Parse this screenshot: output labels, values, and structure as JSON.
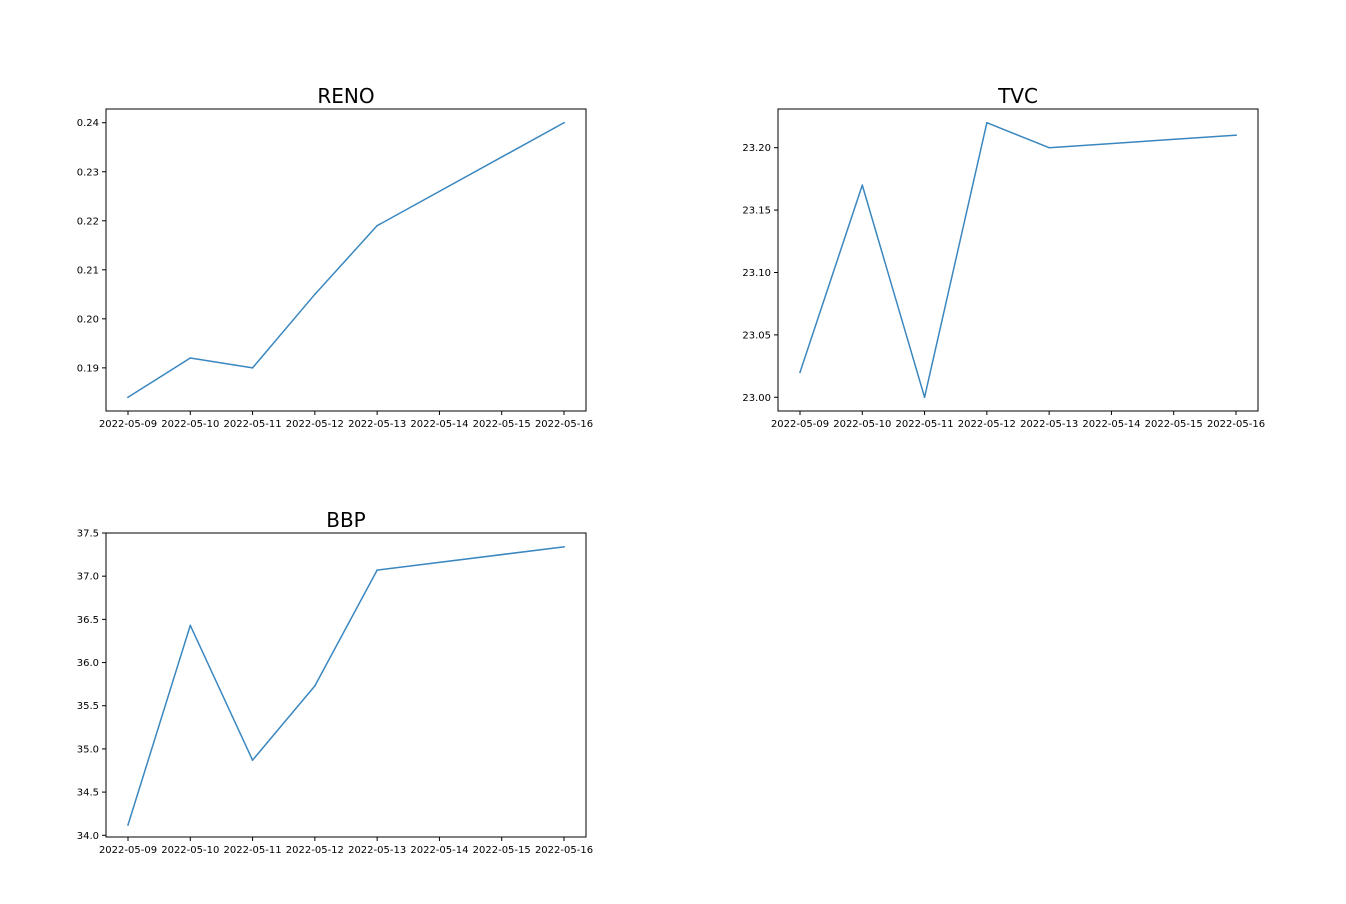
{
  "chart_data": [
    {
      "type": "line",
      "title": "RENO",
      "xlabel": "",
      "ylabel": "",
      "x_ticks": [
        "2022-05-09",
        "2022-05-10",
        "2022-05-11",
        "2022-05-12",
        "2022-05-13",
        "2022-05-14",
        "2022-05-15",
        "2022-05-16"
      ],
      "x": [
        "2022-05-09",
        "2022-05-10",
        "2022-05-11",
        "2022-05-12",
        "2022-05-13",
        "2022-05-16"
      ],
      "y": [
        0.184,
        0.192,
        0.19,
        0.205,
        0.219,
        0.24
      ],
      "y_ticks": [
        "0.19",
        "0.20",
        "0.21",
        "0.22",
        "0.23",
        "0.24"
      ],
      "ylim": [
        0.1812,
        0.2428
      ],
      "grid": false,
      "line_color": "#3a87c0"
    },
    {
      "type": "line",
      "title": "TVC",
      "xlabel": "",
      "ylabel": "",
      "x_ticks": [
        "2022-05-09",
        "2022-05-10",
        "2022-05-11",
        "2022-05-12",
        "2022-05-13",
        "2022-05-14",
        "2022-05-15",
        "2022-05-16"
      ],
      "x": [
        "2022-05-09",
        "2022-05-10",
        "2022-05-11",
        "2022-05-12",
        "2022-05-13",
        "2022-05-16"
      ],
      "y": [
        23.02,
        23.17,
        23.0,
        23.22,
        23.2,
        23.21
      ],
      "y_ticks": [
        "23.00",
        "23.05",
        "23.10",
        "23.15",
        "23.20"
      ],
      "ylim": [
        22.989,
        23.231
      ],
      "grid": false,
      "line_color": "#3a87c0"
    },
    {
      "type": "line",
      "title": "BBP",
      "xlabel": "",
      "ylabel": "",
      "x_ticks": [
        "2022-05-09",
        "2022-05-10",
        "2022-05-11",
        "2022-05-12",
        "2022-05-13",
        "2022-05-14",
        "2022-05-15",
        "2022-05-16"
      ],
      "x": [
        "2022-05-09",
        "2022-05-10",
        "2022-05-11",
        "2022-05-12",
        "2022-05-13",
        "2022-05-16"
      ],
      "y": [
        34.12,
        36.43,
        34.87,
        35.73,
        37.07,
        37.34
      ],
      "y_ticks": [
        "34.0",
        "34.5",
        "35.0",
        "35.5",
        "36.0",
        "36.5",
        "37.0",
        "37.5"
      ],
      "ylim": [
        33.98,
        37.5
      ],
      "grid": false,
      "line_color": "#3a87c0"
    }
  ]
}
